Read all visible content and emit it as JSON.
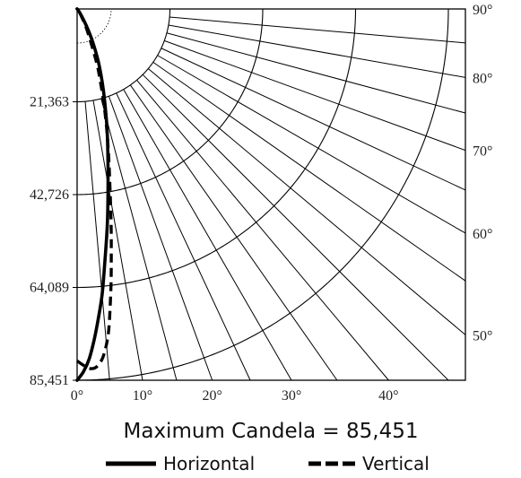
{
  "chart_data": {
    "type": "polar-candela",
    "caption": "Maximum Candela = 85,451",
    "max_candela": 85451,
    "radial_tick_values": [
      21363,
      42726,
      64089,
      85451
    ],
    "radial_tick_labels": [
      "21,363",
      "42,726",
      "64,089",
      "85,451"
    ],
    "bottom_angle_labels": [
      "0°",
      "10°",
      "20°",
      "30°",
      "40°"
    ],
    "right_angle_labels": [
      "50°",
      "60°",
      "70°",
      "80°",
      "90°"
    ],
    "angle_range_deg": [
      0,
      90
    ],
    "angle_line_step_deg": 5,
    "series": [
      {
        "name": "Horizontal",
        "line_style": "solid",
        "angles_deg": [
          0,
          1,
          2,
          3,
          4,
          5,
          6,
          8,
          10,
          12,
          14,
          16,
          18,
          20,
          22,
          24,
          26,
          28,
          30,
          35,
          40,
          60,
          90
        ],
        "candela": [
          85451,
          83500,
          80500,
          76000,
          71000,
          66000,
          60000,
          50000,
          41000,
          34000,
          28500,
          23500,
          19500,
          16000,
          13000,
          10000,
          7500,
          5200,
          3300,
          1200,
          300,
          0,
          0
        ]
      },
      {
        "name": "Vertical",
        "line_style": "dashed",
        "angles_deg": [
          0,
          1,
          2,
          3,
          4,
          4.5,
          5,
          5.5,
          6,
          7,
          8,
          9,
          10,
          12,
          14,
          16,
          18,
          20,
          25,
          30,
          40,
          60,
          90
        ],
        "candela": [
          81000,
          82000,
          82800,
          82600,
          81000,
          79500,
          77500,
          75000,
          71500,
          64000,
          56500,
          50000,
          44000,
          35000,
          28000,
          22000,
          17000,
          13000,
          5500,
          2000,
          300,
          0,
          0
        ]
      }
    ],
    "legend": {
      "placement": "bottom",
      "entries": [
        "Horizontal",
        "Vertical"
      ]
    }
  }
}
